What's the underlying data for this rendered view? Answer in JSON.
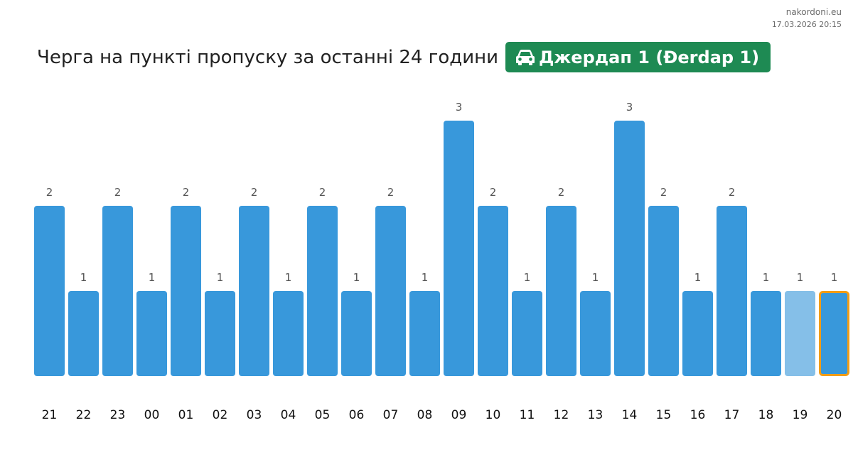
{
  "watermark": {
    "site": "nakordoni.eu",
    "timestamp": "17.03.2026 20:15"
  },
  "header": {
    "title": "Черга на пункті пропуску за останні 24 години",
    "checkpoint": "Джердап 1 (Đerdap 1)",
    "checkpoint_icon": "car-icon",
    "badge_color": "#1e8a53"
  },
  "colors": {
    "bar": "#3898db",
    "bar_faded": "#85bfe8",
    "highlight_border": "#f29d16",
    "value_label": "#555555",
    "tick_label": "#111111"
  },
  "chart_data": {
    "type": "bar",
    "categories": [
      "21",
      "22",
      "23",
      "00",
      "01",
      "02",
      "03",
      "04",
      "05",
      "06",
      "07",
      "08",
      "09",
      "10",
      "11",
      "12",
      "13",
      "14",
      "15",
      "16",
      "17",
      "18",
      "19",
      "20"
    ],
    "values": [
      2,
      1,
      2,
      1,
      2,
      1,
      2,
      1,
      2,
      1,
      2,
      1,
      3,
      2,
      1,
      2,
      1,
      3,
      2,
      1,
      2,
      1,
      1,
      1
    ],
    "faded_categories": [
      "19"
    ],
    "highlighted_category": "20",
    "title": "",
    "xlabel": "",
    "ylabel": "",
    "ylim": [
      0,
      3
    ],
    "grid": false,
    "legend": "none",
    "data_labels": true
  }
}
